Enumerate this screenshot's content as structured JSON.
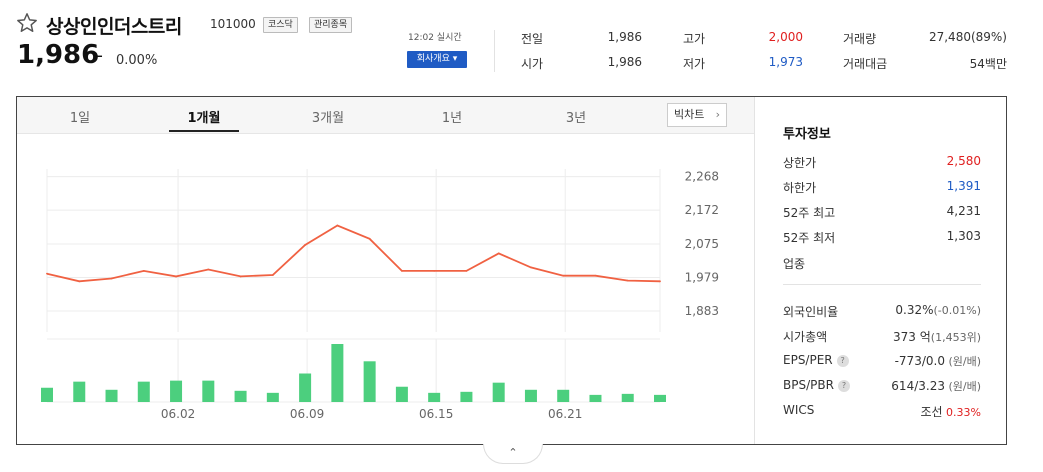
{
  "header": {
    "stock_name": "상상인인더스트리",
    "stock_code": "101000",
    "badges": [
      "코스닥",
      "관리종목"
    ],
    "price": "1,986",
    "change_sign": "–",
    "change_pct": "0.00%",
    "time": "12:02 실시간",
    "company_button": "회사개요 ▾"
  },
  "quotes": [
    {
      "label": "전일",
      "value": "1,986",
      "color": "#333333"
    },
    {
      "label": "고가",
      "value": "2,000",
      "color": "#e02020"
    },
    {
      "label": "거래량",
      "value": "27,480(89%)",
      "color": "#333333"
    },
    {
      "label": "시가",
      "value": "1,986",
      "color": "#333333"
    },
    {
      "label": "저가",
      "value": "1,973",
      "color": "#1f5bc4"
    },
    {
      "label": "거래대금",
      "value": "54백만",
      "color": "#333333"
    }
  ],
  "tabs": [
    "1일",
    "1개월",
    "3개월",
    "1년",
    "3년"
  ],
  "active_tab": "1개월",
  "big_chart_button": "빅차트",
  "chart_data": {
    "type": "line",
    "title": "",
    "y_ticks": [
      2268,
      2172,
      2075,
      1979,
      1883
    ],
    "ylim": [
      1860,
      2290
    ],
    "x_ticks": [
      "06.02",
      "06.09",
      "06.15",
      "06.21"
    ],
    "x_tick_indices": [
      4,
      8,
      12,
      16
    ],
    "series": [
      {
        "values": [
          1990,
          1968,
          1976,
          1998,
          1982,
          2002,
          1982,
          1986,
          2072,
          2128,
          2090,
          1998,
          1998,
          1998,
          2048,
          2008,
          1984,
          1984,
          1970,
          1968
        ]
      }
    ],
    "volume": [
      14,
      20,
      12,
      20,
      21,
      21,
      11,
      9,
      28,
      57,
      40,
      15,
      9,
      10,
      19,
      12,
      12,
      7,
      8,
      7
    ],
    "line_color": "#f06142",
    "bar_color": "#4ccf7e"
  },
  "investment": {
    "title": "투자정보",
    "rows1": [
      {
        "label": "상한가",
        "value": "2,580",
        "color": "#e02020"
      },
      {
        "label": "하한가",
        "value": "1,391",
        "color": "#1f5bc4"
      },
      {
        "label": "52주 최고",
        "value": "4,231",
        "color": "#333333"
      },
      {
        "label": "52주 최저",
        "value": "1,303",
        "color": "#333333"
      },
      {
        "label": "업종",
        "value": "",
        "color": "#333333"
      }
    ],
    "rows2": [
      {
        "label": "외국인비율",
        "value": "0.32%",
        "sub": "(-0.01%)",
        "q": false
      },
      {
        "label": "시가총액",
        "value": "373 억",
        "sub": "(1,453위)",
        "q": false
      },
      {
        "label": "EPS/PER",
        "value": "-773/0.0",
        "sub": " (원/배)",
        "q": true
      },
      {
        "label": "BPS/PBR",
        "value": "614/3.23",
        "sub": " (원/배)",
        "q": true
      },
      {
        "label": "WICS",
        "value": "조선",
        "sub": " 0.33%",
        "q": false,
        "sub_color": "#e02020"
      }
    ]
  },
  "toggle_icon": "⌃"
}
